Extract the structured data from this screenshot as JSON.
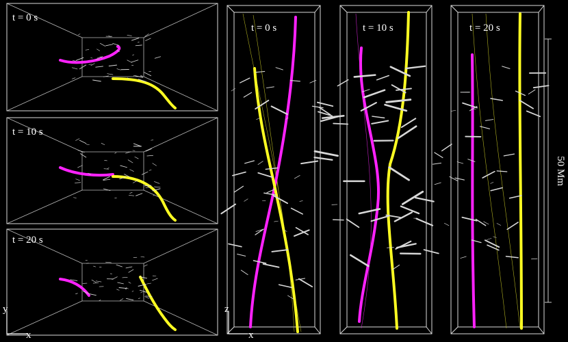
{
  "left_panels": [
    {
      "label": "t = 0 s"
    },
    {
      "label": "t = 10 s"
    },
    {
      "label": "t = 20 s"
    }
  ],
  "right_panels": [
    {
      "label": "t = 0 s"
    },
    {
      "label": "t = 10 s"
    },
    {
      "label": "t = 20 s"
    }
  ],
  "scale_bar": "50 Mm",
  "left_axes": {
    "vertical": "y",
    "horizontal": "x"
  },
  "right_axes": {
    "vertical": "z",
    "horizontal": "x"
  }
}
